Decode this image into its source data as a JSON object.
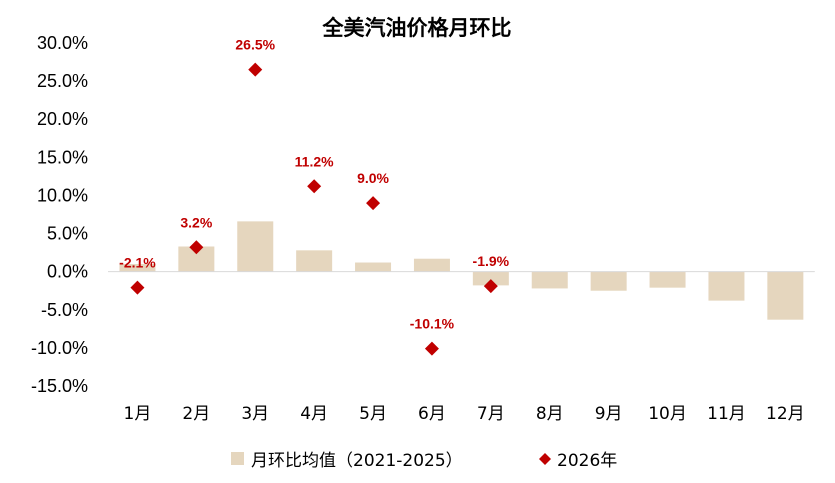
{
  "chart_data": {
    "type": "bar",
    "title": "全美汽油价格月环比",
    "categories": [
      "1月",
      "2月",
      "3月",
      "4月",
      "5月",
      "6月",
      "7月",
      "8月",
      "9月",
      "10月",
      "11月",
      "12月"
    ],
    "y_ticks": [
      "30.0%",
      "25.0%",
      "20.0%",
      "15.0%",
      "10.0%",
      "5.0%",
      "0.0%",
      "-5.0%",
      "-10.0%",
      "-15.0%"
    ],
    "ylim": [
      -15,
      30
    ],
    "y_unit": "%",
    "grid": false,
    "legend_position": "bottom",
    "series": [
      {
        "name": "月环比均值（2021-2025）",
        "type": "bar",
        "color": "#E5D6BE",
        "values": [
          1.0,
          3.3,
          6.6,
          2.8,
          1.2,
          1.7,
          -1.8,
          -2.2,
          -2.5,
          -2.1,
          -3.8,
          -6.3
        ]
      },
      {
        "name": "2026年",
        "type": "scatter",
        "marker": "diamond",
        "color": "#C00000",
        "values": [
          -2.1,
          3.2,
          26.5,
          11.2,
          9.0,
          -10.1,
          -1.9
        ],
        "labels": [
          "-2.1%",
          "3.2%",
          "26.5%",
          "11.2%",
          "9.0%",
          "-10.1%",
          "-1.9%"
        ]
      }
    ],
    "label_color": "#C00000"
  }
}
